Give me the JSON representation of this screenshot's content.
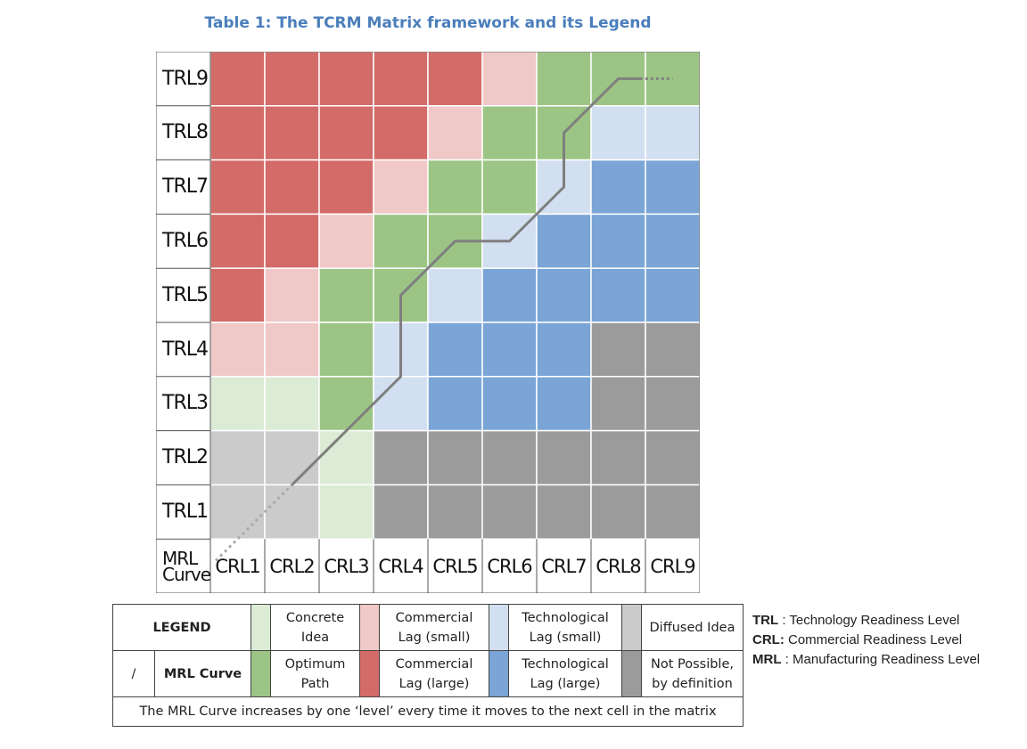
{
  "title": "Table 1: The TCRM Matrix framework and its Legend",
  "colors": {
    "concrete_idea": "#dcebd5",
    "commercial_lag_small": "#f0c8c8",
    "technological_lag_small": "#d2dff0",
    "diffused_idea": "#cbcbcb",
    "optimum_path": "#9cc585",
    "commercial_lag_large": "#d36b68",
    "technological_lag_large": "#7aa5d6",
    "not_possible": "#9b9b9b",
    "curve": "#7f7f7f"
  },
  "matrix": {
    "row_labels": [
      "TRL9",
      "TRL8",
      "TRL7",
      "TRL6",
      "TRL5",
      "TRL4",
      "TRL3",
      "TRL2",
      "TRL1"
    ],
    "col_labels": [
      "CRL1",
      "CRL2",
      "CRL3",
      "CRL4",
      "CRL5",
      "CRL6",
      "CRL7",
      "CRL8",
      "CRL9"
    ],
    "corner_label_line1": "MRL",
    "corner_label_line2": "Curve",
    "cells": [
      [
        "CL",
        "CL",
        "CL",
        "CL",
        "CL",
        "cl",
        "OP",
        "OP",
        "OP"
      ],
      [
        "CL",
        "CL",
        "CL",
        "CL",
        "cl",
        "OP",
        "OP",
        "tl",
        "tl"
      ],
      [
        "CL",
        "CL",
        "CL",
        "cl",
        "OP",
        "OP",
        "tl",
        "TL",
        "TL"
      ],
      [
        "CL",
        "CL",
        "cl",
        "OP",
        "OP",
        "tl",
        "TL",
        "TL",
        "TL"
      ],
      [
        "CL",
        "cl",
        "OP",
        "OP",
        "tl",
        "TL",
        "TL",
        "TL",
        "TL"
      ],
      [
        "cl",
        "cl",
        "OP",
        "tl",
        "TL",
        "TL",
        "TL",
        "NP",
        "NP"
      ],
      [
        "CI",
        "CI",
        "OP",
        "tl",
        "TL",
        "TL",
        "TL",
        "NP",
        "NP"
      ],
      [
        "DI",
        "DI",
        "CI",
        "NP",
        "NP",
        "NP",
        "NP",
        "NP",
        "NP"
      ],
      [
        "DI",
        "DI",
        "CI",
        "NP",
        "NP",
        "NP",
        "NP",
        "NP",
        "NP"
      ]
    ],
    "curve_path": [
      [
        1.5,
        2.5
      ],
      [
        3.5,
        5.5
      ],
      [
        3.5,
        6.5
      ],
      [
        4.5,
        7.5
      ],
      [
        5.5,
        7.5
      ],
      [
        6.5,
        8.5
      ],
      [
        6.5,
        9.5
      ],
      [
        8,
        11.5
      ],
      [
        9,
        11.5
      ]
    ]
  },
  "legend": {
    "header": "LEGEND",
    "slash": "/",
    "mrl_curve": "MRL Curve",
    "row1": [
      {
        "key": "concrete_idea",
        "l1": "Concrete",
        "l2": "Idea"
      },
      {
        "key": "commercial_lag_small",
        "l1": "Commercial",
        "l2": "Lag (small)"
      },
      {
        "key": "technological_lag_small",
        "l1": "Technological",
        "l2": "Lag (small)"
      },
      {
        "key": "diffused_idea",
        "l1": "Diffused Idea",
        "l2": ""
      }
    ],
    "row2": [
      {
        "key": "optimum_path",
        "l1": "Optimum",
        "l2": "Path"
      },
      {
        "key": "commercial_lag_large",
        "l1": "Commercial",
        "l2": "Lag (large)"
      },
      {
        "key": "technological_lag_large",
        "l1": "Technological",
        "l2": "Lag (large)"
      },
      {
        "key": "not_possible",
        "l1": "Not Possible,",
        "l2": "by definition"
      }
    ],
    "footnote": "The MRL Curve increases by one ‘level’ every time it moves to the next cell in the matrix"
  },
  "definitions": [
    {
      "abbr": "TRL",
      "sep": " : ",
      "text": "Technology Readiness Level"
    },
    {
      "abbr": "CRL:",
      "sep": " ",
      "text": "Commercial Readiness Level"
    },
    {
      "abbr": "MRL",
      "sep": " : ",
      "text": "Manufacturing Readiness Level"
    }
  ]
}
